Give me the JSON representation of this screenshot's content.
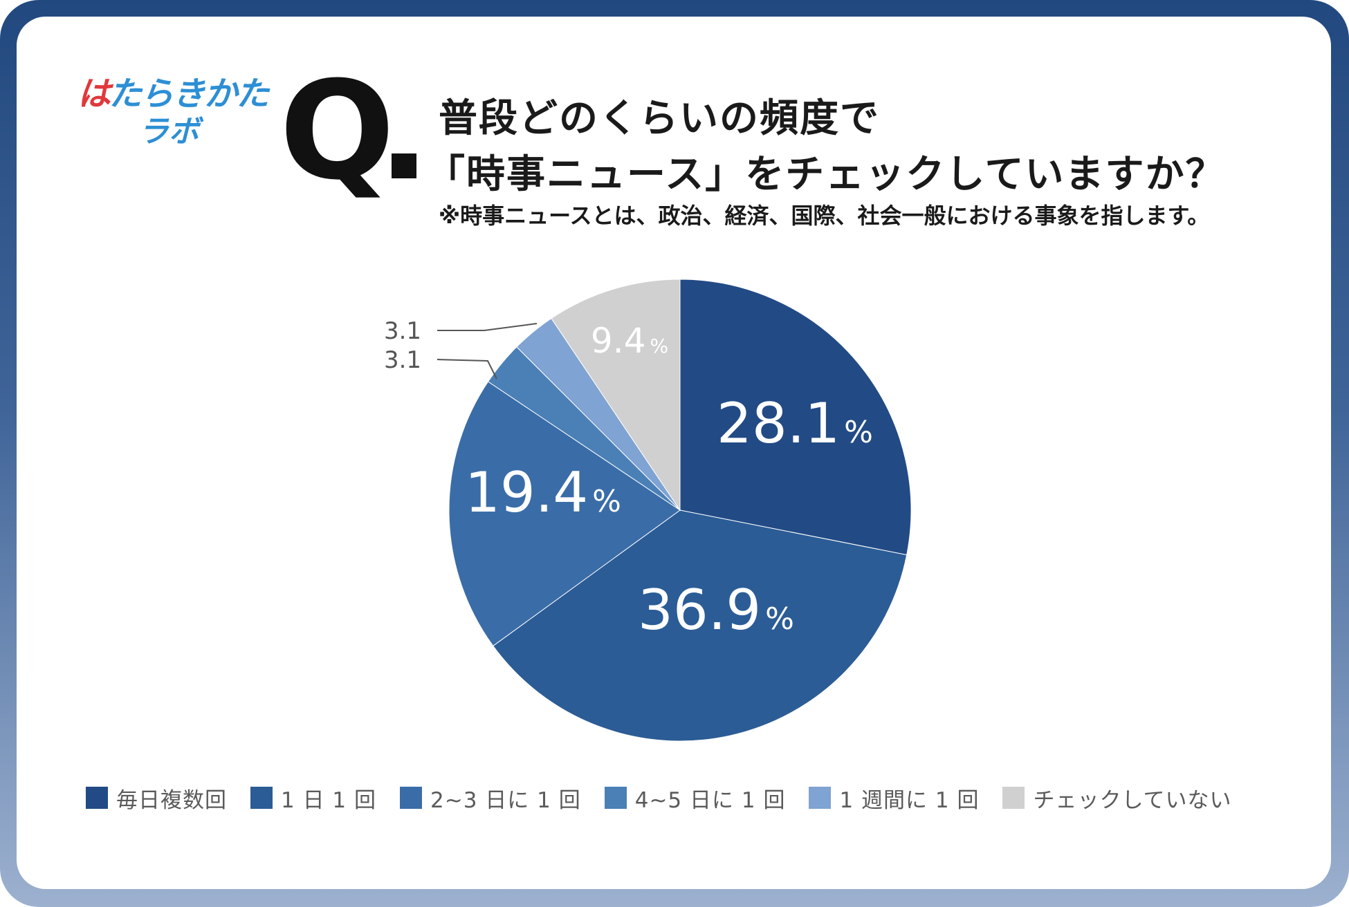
{
  "logo": {
    "line1_prefix": "は",
    "line1_rest": "たらきかた",
    "line2": "ラボ"
  },
  "question": {
    "mark": "Q",
    "line1": "普段どのくらいの頻度で",
    "line2": "「時事ニュース」をチェックしていますか？",
    "note": "※時事ニュースとは、政治、経済、国際、社会一般における事象を指します。"
  },
  "chart_data": {
    "type": "pie",
    "unit": "%",
    "start": "12 o'clock",
    "direction": "clockwise",
    "slices": [
      {
        "label": "毎日複数回",
        "value": 28.1,
        "color": "#224b86",
        "display": "28.1",
        "label_position": "inside"
      },
      {
        "label": "1 日 1 回",
        "value": 36.9,
        "color": "#2b5c96",
        "display": "36.9",
        "label_position": "inside"
      },
      {
        "label": "2~3 日に 1 回",
        "value": 19.4,
        "color": "#3a6da8",
        "display": "19.4",
        "label_position": "inside"
      },
      {
        "label": "4~5 日に 1 回",
        "value": 3.1,
        "color": "#4b80b6",
        "display": "3.1",
        "label_position": "outside"
      },
      {
        "label": "1 週間に 1 回",
        "value": 3.1,
        "color": "#7fa3d2",
        "display": "3.1",
        "label_position": "outside"
      },
      {
        "label": "チェックしていない",
        "value": 9.4,
        "color": "#d0d0d0",
        "display": "9.4",
        "label_position": "inside"
      }
    ],
    "legend_position": "bottom"
  }
}
